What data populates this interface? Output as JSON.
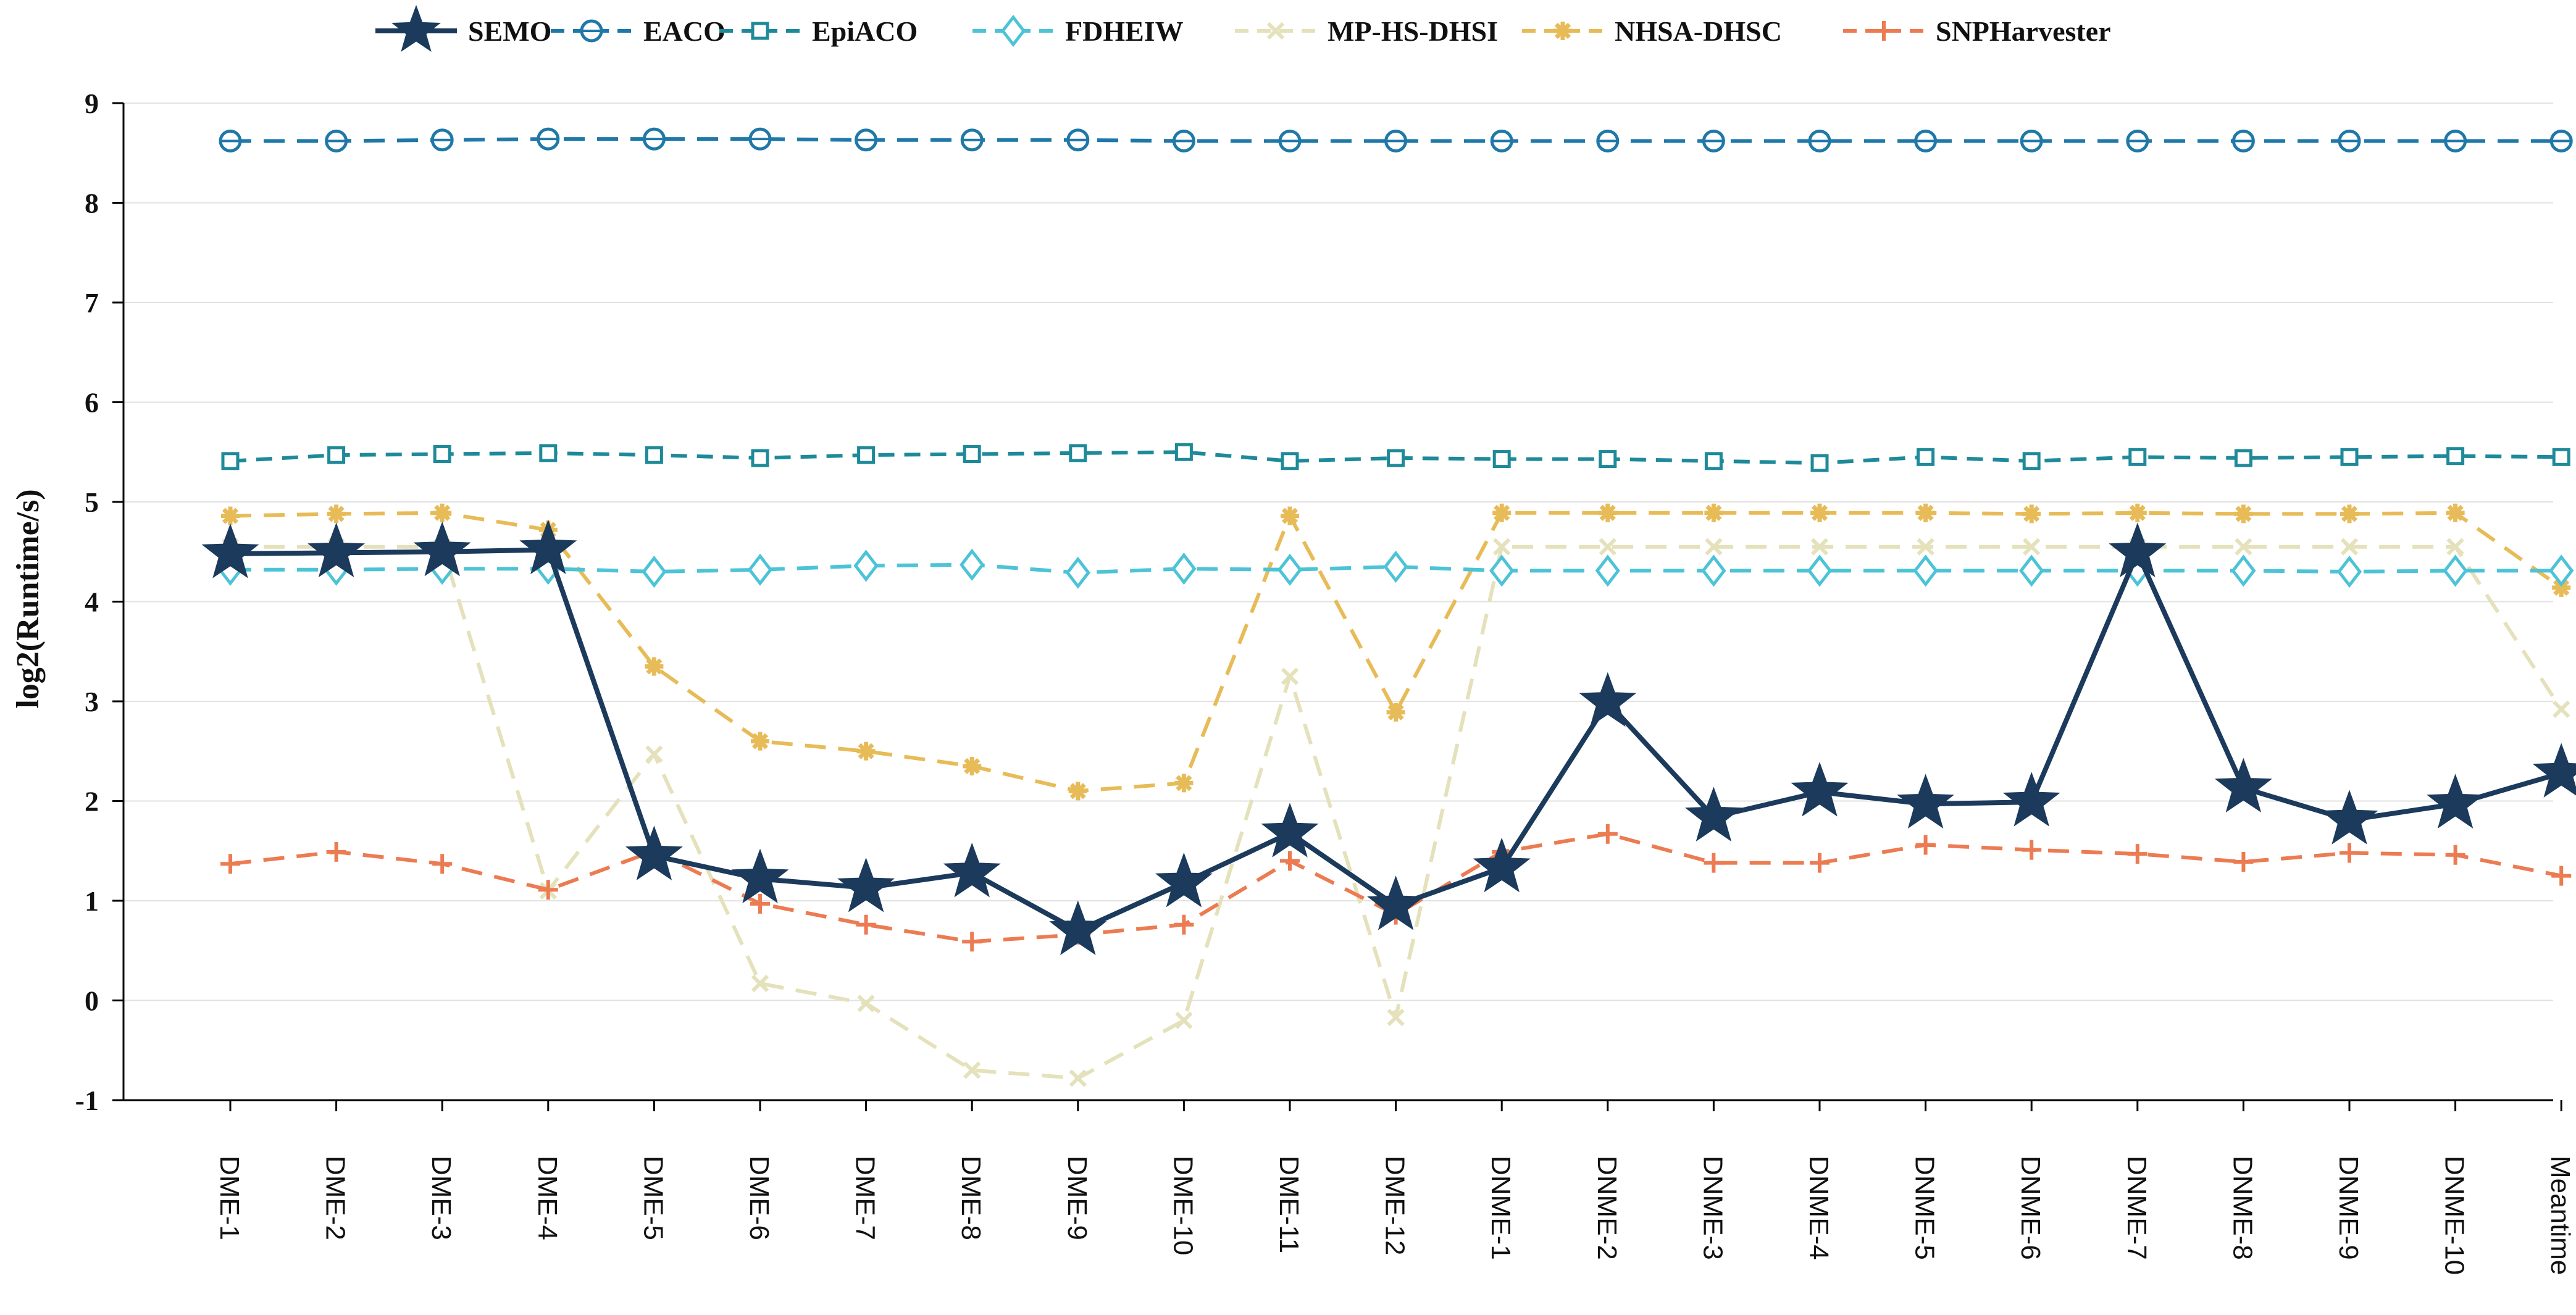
{
  "chart_data": {
    "type": "line",
    "title": "",
    "xlabel": "",
    "ylabel": "log2(Runtime/s)",
    "ylim": [
      -1,
      9
    ],
    "yticks": [
      "-1",
      "0",
      "1",
      "2",
      "3",
      "4",
      "5",
      "6",
      "7",
      "8",
      "9"
    ],
    "grid": "horizontal",
    "legend_position": "top",
    "categories": [
      "DME-1",
      "DME-2",
      "DME-3",
      "DME-4",
      "DME-5",
      "DME-6",
      "DME-7",
      "DME-8",
      "DME-9",
      "DME-10",
      "DME-11",
      "DME-12",
      "DNME-1",
      "DNME-2",
      "DNME-3",
      "DNME-4",
      "DNME-5",
      "DNME-6",
      "DNME-7",
      "DNME-8",
      "DNME-9",
      "DNME-10",
      "Meantime"
    ],
    "series": [
      {
        "name": "SEMO",
        "color": "#1b3a5c",
        "marker": "star",
        "dash": "solid",
        "values": [
          4.48,
          4.49,
          4.5,
          4.52,
          1.45,
          1.22,
          1.13,
          1.28,
          0.7,
          1.18,
          1.68,
          0.95,
          1.33,
          2.99,
          1.84,
          2.09,
          1.97,
          1.99,
          4.49,
          2.13,
          1.81,
          1.97,
          2.28
        ]
      },
      {
        "name": "EACO",
        "color": "#1f78a8",
        "marker": "circle-line",
        "dash": "long",
        "values": [
          8.62,
          8.62,
          8.63,
          8.64,
          8.64,
          8.64,
          8.63,
          8.63,
          8.63,
          8.62,
          8.62,
          8.62,
          8.62,
          8.62,
          8.62,
          8.62,
          8.62,
          8.62,
          8.62,
          8.62,
          8.62,
          8.62,
          8.62
        ]
      },
      {
        "name": "EpiACO",
        "color": "#1e8a99",
        "marker": "square",
        "dash": "medium",
        "values": [
          5.41,
          5.47,
          5.48,
          5.49,
          5.47,
          5.44,
          5.47,
          5.48,
          5.49,
          5.5,
          5.41,
          5.44,
          5.43,
          5.43,
          5.41,
          5.39,
          5.45,
          5.41,
          5.45,
          5.44,
          5.45,
          5.46,
          5.45
        ]
      },
      {
        "name": "FDHEIW",
        "color": "#4cc3d6",
        "marker": "diamond",
        "dash": "long",
        "values": [
          4.32,
          4.32,
          4.33,
          4.33,
          4.3,
          4.32,
          4.36,
          4.37,
          4.29,
          4.33,
          4.32,
          4.35,
          4.31,
          4.31,
          4.31,
          4.31,
          4.31,
          4.31,
          4.31,
          4.31,
          4.3,
          4.31,
          4.31
        ]
      },
      {
        "name": "MP-HS-DHSI",
        "color": "#e4e1bb",
        "marker": "x",
        "dash": "long",
        "values": [
          4.55,
          4.55,
          4.55,
          1.1,
          2.47,
          0.17,
          -0.03,
          -0.7,
          -0.78,
          -0.2,
          3.25,
          -0.17,
          4.55,
          4.55,
          4.55,
          4.55,
          4.55,
          4.55,
          4.55,
          4.55,
          4.55,
          4.55,
          2.92
        ]
      },
      {
        "name": "NHSA-DHSC",
        "color": "#e7bb57",
        "marker": "asterisk",
        "dash": "long",
        "values": [
          4.86,
          4.88,
          4.89,
          4.72,
          3.35,
          2.6,
          2.5,
          2.35,
          2.1,
          2.18,
          4.86,
          2.89,
          4.89,
          4.89,
          4.89,
          4.89,
          4.89,
          4.88,
          4.89,
          4.88,
          4.88,
          4.89,
          4.14
        ]
      },
      {
        "name": "SNPHarvester",
        "color": "#ec7b52",
        "marker": "plus",
        "dash": "long",
        "values": [
          1.37,
          1.49,
          1.37,
          1.11,
          1.5,
          0.97,
          0.76,
          0.59,
          0.66,
          0.76,
          1.4,
          0.86,
          1.49,
          1.67,
          1.38,
          1.38,
          1.56,
          1.51,
          1.47,
          1.39,
          1.48,
          1.46,
          1.25
        ]
      }
    ]
  }
}
